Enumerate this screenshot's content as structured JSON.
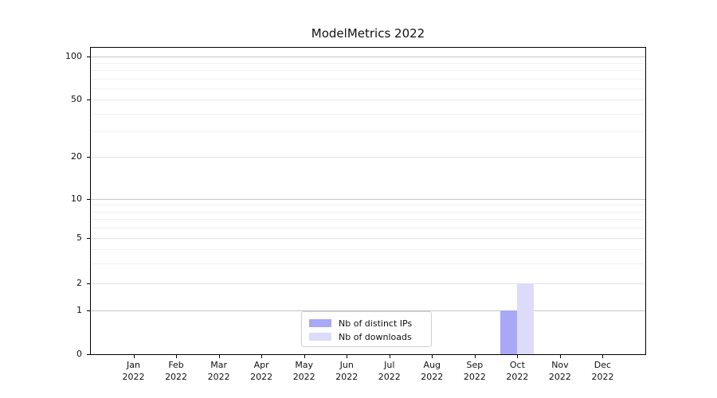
{
  "chart_data": {
    "type": "bar",
    "title": "ModelMetrics 2022",
    "categories": [
      "Jan 2022",
      "Feb 2022",
      "Mar 2022",
      "Apr 2022",
      "May 2022",
      "Jun 2022",
      "Jul 2022",
      "Aug 2022",
      "Sep 2022",
      "Oct 2022",
      "Nov 2022",
      "Dec 2022"
    ],
    "series": [
      {
        "name": "Nb of distinct IPs",
        "color": "#a8a8f6",
        "values": [
          0,
          0,
          0,
          0,
          0,
          0,
          0,
          0,
          0,
          1,
          0,
          0
        ]
      },
      {
        "name": "Nb of downloads",
        "color": "#dcdcfa",
        "values": [
          0,
          0,
          0,
          0,
          0,
          0,
          0,
          0,
          0,
          2,
          0,
          0
        ]
      }
    ],
    "y_axis": {
      "scale": "symlog",
      "ticks": [
        0,
        1,
        2,
        5,
        10,
        20,
        50,
        100
      ],
      "minor_ticks": [
        3,
        4,
        6,
        7,
        8,
        9,
        30,
        40,
        60,
        70,
        80,
        90
      ],
      "range": [
        0,
        115
      ]
    },
    "x_axis": {
      "label": "",
      "tick_count": 12
    },
    "legend": {
      "position": "inside-bottom-center"
    },
    "grid": {
      "major_color": "#c4c4c4",
      "mid_color": "#e3e3e3",
      "minor_color": "#f0f0f0"
    }
  }
}
